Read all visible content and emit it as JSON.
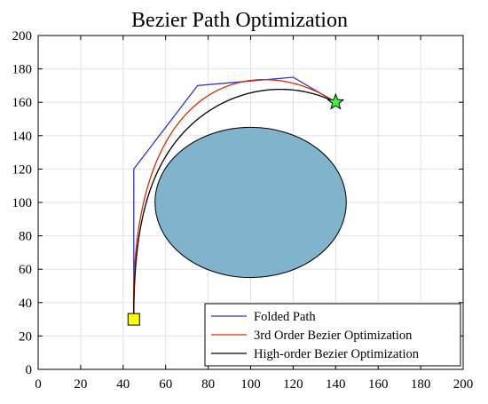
{
  "chart_data": {
    "type": "line",
    "title": "Bezier Path Optimization",
    "xlim": [
      0,
      200
    ],
    "ylim": [
      0,
      200
    ],
    "xticks": [
      0,
      20,
      40,
      60,
      80,
      100,
      120,
      140,
      160,
      180,
      200
    ],
    "yticks": [
      0,
      20,
      40,
      60,
      80,
      100,
      120,
      140,
      160,
      180,
      200
    ],
    "grid": true,
    "legend_position": "bottom-right",
    "obstacle": {
      "shape": "ellipse",
      "center": [
        100,
        100
      ],
      "radius_x": 45,
      "radius_y": 45,
      "fill": "#80b3cc",
      "stroke": "#000000"
    },
    "start": {
      "x": 45,
      "y": 30,
      "marker": "square",
      "fill": "#ffff00"
    },
    "goal": {
      "x": 140,
      "y": 160,
      "marker": "star",
      "fill": "#33ff33"
    },
    "series": [
      {
        "name": "Folded Path",
        "color": "#3333cc",
        "points": [
          [
            45,
            30
          ],
          [
            45,
            120
          ],
          [
            75,
            170
          ],
          [
            120,
            175
          ],
          [
            140,
            160
          ]
        ]
      },
      {
        "name": "3rd Order Bezier Optimization",
        "color": "#cc3300",
        "control_points": [
          [
            45,
            30
          ],
          [
            42,
            180
          ],
          [
            105,
            190
          ],
          [
            140,
            160
          ]
        ]
      },
      {
        "name": "High-order Bezier Optimization",
        "color": "#000000",
        "control_points": [
          [
            45,
            30
          ],
          [
            45,
            120
          ],
          [
            60,
            150
          ],
          [
            100,
            185
          ],
          [
            140,
            160
          ]
        ]
      }
    ]
  }
}
